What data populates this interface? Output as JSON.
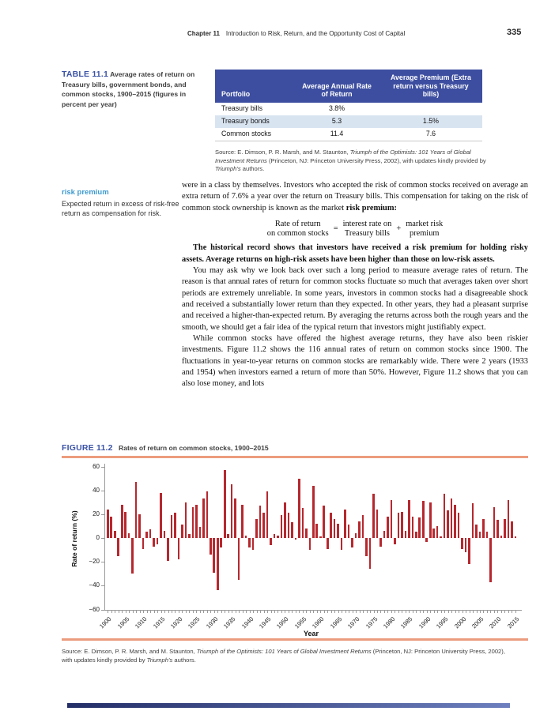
{
  "header": {
    "chapter": "Chapter 11",
    "title": "Introduction to Risk, Return, and the Opportunity Cost of Capital",
    "page_number": "335"
  },
  "table_caption": {
    "label": "TABLE 11.1",
    "text": "Average rates of return on Treasury bills, government bonds, and common stocks, 1900–2015 (figures in percent per year)"
  },
  "table": {
    "columns": [
      "Portfolio",
      "Average Annual Rate of Return",
      "Average Premium (Extra return versus Treasury bills)"
    ],
    "rows": [
      {
        "portfolio": "Treasury bills",
        "rate": "3.8%",
        "premium": ""
      },
      {
        "portfolio": "Treasury bonds",
        "rate": "5.3",
        "premium": "1.5%"
      },
      {
        "portfolio": "Common stocks",
        "rate": "11.4",
        "premium": "7.6"
      }
    ]
  },
  "source_note": {
    "p1": "Source: E. Dimson, P. R. Marsh, and M. Staunton, ",
    "p2": "Triumph of the Optimists: 101 Years of Global Investment Returns",
    "p3": " (Princeton, NJ: Princeton University Press, 2002), with updates kindly provided by ",
    "p4": "Triumph’s",
    "p5": " authors."
  },
  "margin_note": {
    "term": "risk premium",
    "definition": "Expected return in excess of risk-free return as compensation for risk."
  },
  "body": {
    "p1_text": "were in a class by themselves. Investors who accepted the risk of common stocks received on average an extra return of 7.6% a year over the return on Treasury bills. This compensation for taking on the risk of common stock ownership is known as the market ",
    "p1_bold": "risk premium:",
    "p2_bold": "The historical record shows that investors have received a risk premium for holding risky assets. Average returns on high-risk assets have been higher than those on low-risk assets.",
    "p3": "You may ask why we look back over such a long period to measure average rates of return. The reason is that annual rates of return for common stocks fluctuate so much that averages taken over short periods are extremely unreliable. In some years, investors in common stocks had a disagreeable shock and received a substantially lower return than they expected. In other years, they had a pleasant surprise and received a higher-than-expected return. By averaging the returns across both the rough years and the smooth, we should get a fair idea of the typical return that investors might justifiably expect.",
    "p4": "While common stocks have offered the highest average returns, they have also been riskier investments. Figure 11.2 shows the 116 annual rates of return on common stocks since 1900. The fluctuations in year-to-year returns on common stocks are remarkably wide. There were 2 years (1933 and 1954) when investors earned a return of more than 50%. However, Figure 11.2 shows that you can also lose money, and lots"
  },
  "equation": {
    "lhs_line1": "Rate of return",
    "lhs_line2": "on common stocks",
    "equals": "=",
    "mid_line1": "interest rate on",
    "mid_line2": "Treasury bills",
    "plus": "+",
    "rhs_line1": "market risk",
    "rhs_line2": "premium"
  },
  "figure": {
    "label": "FIGURE 11.2",
    "title": "Rates of return on common stocks, 1900–2015"
  },
  "chart_data": {
    "type": "bar",
    "title": "Rates of return on common stocks, 1900–2015",
    "xlabel": "Year",
    "ylabel": "Rate of return (%)",
    "ylim": [
      -60,
      60
    ],
    "yticks": [
      60,
      40,
      20,
      0,
      -20,
      -40,
      -60
    ],
    "x_start": 1900,
    "x_end": 2015,
    "x_tick_interval": 5,
    "bar_color": "#b6282e",
    "values": [
      24,
      18,
      6,
      -15,
      28,
      22,
      4,
      -30,
      47,
      20,
      -9,
      5,
      7,
      -7,
      -5,
      38,
      6,
      -19,
      19,
      21,
      -18,
      11,
      30,
      3,
      26,
      28,
      9,
      33,
      39,
      -14,
      -29,
      -44,
      -8,
      57,
      3,
      45,
      33,
      -35,
      28,
      2,
      -8,
      -10,
      16,
      27,
      21,
      39,
      -6,
      3,
      2,
      19,
      30,
      21,
      13,
      -1,
      50,
      25,
      8,
      -10,
      44,
      12,
      1,
      27,
      -9,
      21,
      16,
      12,
      -10,
      24,
      11,
      -8,
      4,
      14,
      19,
      -15,
      -26,
      37,
      24,
      -7,
      6,
      18,
      32,
      -5,
      21,
      22,
      6,
      32,
      18,
      5,
      17,
      31,
      -3,
      30,
      8,
      10,
      1,
      37,
      23,
      33,
      28,
      21,
      -9,
      -12,
      -22,
      29,
      11,
      5,
      16,
      5,
      -37,
      26,
      15,
      2,
      16,
      32,
      14,
      1
    ]
  },
  "colors": {
    "table_header_bg": "#3d4ea0",
    "table_alt_row_bg": "#d9e4f1",
    "caption_blue": "#3b53a5",
    "term_blue": "#3e9ad0",
    "rule_salmon": "#ec9c7e",
    "bar_red": "#b6282e"
  }
}
